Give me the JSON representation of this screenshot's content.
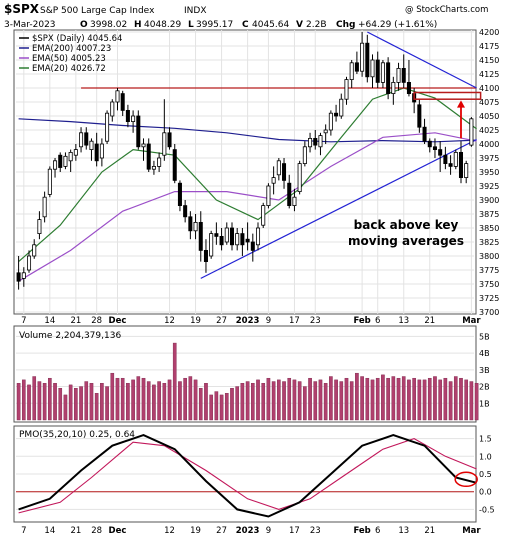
{
  "header": {
    "symbol": "$SPX",
    "name": "S&P 500 Large Cap Index",
    "exchange": "INDX",
    "watermark": "@ StockCharts.com",
    "date": "3-Mar-2023",
    "open_label": "O",
    "open": "3998.02",
    "high_label": "H",
    "high": "4048.29",
    "low_label": "L",
    "low": "3995.17",
    "close_label": "C",
    "close": "4045.64",
    "volume_label": "V",
    "volume": "2.2B",
    "change_label": "Chg",
    "change": "+64.29 (+1.61%)"
  },
  "colors": {
    "up": "#000000",
    "down": "#000000",
    "ema200": "#1f1f8f",
    "ema50": "#9b4fc8",
    "ema20": "#2e7d32",
    "resistance": "#b71c1c",
    "trendline": "#2323d4",
    "annotation": "#e00000",
    "volume_bar": "#b0406e",
    "pmo": "#000000",
    "pmo_signal": "#c2185b",
    "grid": "#e3e3e3"
  },
  "chart_data": [
    {
      "type": "candlestick",
      "title": "$SPX (Daily) 4045.64",
      "legend": [
        {
          "name": "$SPX (Daily) 4045.64",
          "color": "#000000"
        },
        {
          "name": "EMA(200) 4007.23",
          "color": "#1f1f8f"
        },
        {
          "name": "EMA(50) 4005.23",
          "color": "#9b4fc8"
        },
        {
          "name": "EMA(20) 4026.72",
          "color": "#2e7d32"
        }
      ],
      "ylim": [
        3700,
        4200
      ],
      "y_ticks": [
        3700,
        3725,
        3750,
        3775,
        3800,
        3825,
        3850,
        3875,
        3900,
        3925,
        3950,
        3975,
        4000,
        4025,
        4050,
        4075,
        4100,
        4125,
        4150,
        4175,
        4200
      ],
      "x_ticks": [
        {
          "label": "7",
          "i": 1
        },
        {
          "label": "14",
          "i": 6
        },
        {
          "label": "21",
          "i": 11
        },
        {
          "label": "28",
          "i": 15
        },
        {
          "label": "Dec",
          "i": 19,
          "bold": true
        },
        {
          "label": "12",
          "i": 29
        },
        {
          "label": "19",
          "i": 34
        },
        {
          "label": "27",
          "i": 39
        },
        {
          "label": "2023",
          "i": 44,
          "bold": true
        },
        {
          "label": "9",
          "i": 48
        },
        {
          "label": "17",
          "i": 53
        },
        {
          "label": "23",
          "i": 57
        },
        {
          "label": "Feb",
          "i": 66,
          "bold": true
        },
        {
          "label": "6",
          "i": 69
        },
        {
          "label": "13",
          "i": 74
        },
        {
          "label": "21",
          "i": 79
        },
        {
          "label": "Mar",
          "i": 87,
          "bold": true
        }
      ],
      "candles": [
        [
          3770,
          3800,
          3740,
          3755
        ],
        [
          3760,
          3780,
          3745,
          3770
        ],
        [
          3775,
          3810,
          3770,
          3800
        ],
        [
          3800,
          3830,
          3795,
          3820
        ],
        [
          3840,
          3880,
          3830,
          3865
        ],
        [
          3870,
          3915,
          3860,
          3905
        ],
        [
          3910,
          3960,
          3905,
          3955
        ],
        [
          3955,
          3975,
          3940,
          3970
        ],
        [
          3980,
          3985,
          3950,
          3958
        ],
        [
          3960,
          3985,
          3955,
          3978
        ],
        [
          3970,
          3990,
          3950,
          3985
        ],
        [
          3980,
          4000,
          3970,
          3990
        ],
        [
          3995,
          4030,
          3985,
          4020
        ],
        [
          4020,
          4030,
          3990,
          3998
        ],
        [
          3990,
          4010,
          3970,
          4005
        ],
        [
          4000,
          4020,
          3960,
          3970
        ],
        [
          3975,
          4010,
          3960,
          4000
        ],
        [
          4005,
          4060,
          4000,
          4055
        ],
        [
          4050,
          4080,
          4040,
          4075
        ],
        [
          4075,
          4100,
          4060,
          4095
        ],
        [
          4090,
          4095,
          4050,
          4060
        ],
        [
          4060,
          4070,
          4030,
          4040
        ],
        [
          4040,
          4060,
          4020,
          4050
        ],
        [
          4050,
          4060,
          3990,
          3995
        ],
        [
          3995,
          4010,
          3970,
          4000
        ],
        [
          4000,
          4010,
          3950,
          3955
        ],
        [
          3955,
          3970,
          3945,
          3960
        ],
        [
          3960,
          3985,
          3950,
          3975
        ],
        [
          3980,
          4080,
          3970,
          4020
        ],
        [
          4020,
          4030,
          3990,
          3995
        ],
        [
          3990,
          4000,
          3930,
          3935
        ],
        [
          3930,
          3935,
          3880,
          3890
        ],
        [
          3890,
          3900,
          3860,
          3870
        ],
        [
          3870,
          3880,
          3830,
          3845
        ],
        [
          3845,
          3875,
          3830,
          3860
        ],
        [
          3860,
          3880,
          3790,
          3810
        ],
        [
          3810,
          3830,
          3770,
          3790
        ],
        [
          3800,
          3845,
          3795,
          3840
        ],
        [
          3840,
          3860,
          3820,
          3835
        ],
        [
          3835,
          3850,
          3810,
          3820
        ],
        [
          3825,
          3860,
          3820,
          3850
        ],
        [
          3850,
          3860,
          3810,
          3820
        ],
        [
          3820,
          3850,
          3810,
          3840
        ],
        [
          3840,
          3850,
          3800,
          3820
        ],
        [
          3830,
          3860,
          3810,
          3825
        ],
        [
          3825,
          3840,
          3790,
          3810
        ],
        [
          3820,
          3860,
          3810,
          3850
        ],
        [
          3855,
          3895,
          3850,
          3890
        ],
        [
          3890,
          3930,
          3885,
          3925
        ],
        [
          3930,
          3960,
          3910,
          3940
        ],
        [
          3945,
          3975,
          3935,
          3970
        ],
        [
          3965,
          3975,
          3920,
          3935
        ],
        [
          3930,
          3945,
          3885,
          3890
        ],
        [
          3890,
          3920,
          3880,
          3905
        ],
        [
          3915,
          3970,
          3910,
          3965
        ],
        [
          3965,
          4005,
          3960,
          3995
        ],
        [
          3995,
          4020,
          3985,
          4010
        ],
        [
          4010,
          4025,
          3990,
          3998
        ],
        [
          3995,
          4020,
          3980,
          4015
        ],
        [
          4020,
          4035,
          4000,
          4025
        ],
        [
          4025,
          4060,
          4015,
          4055
        ],
        [
          4055,
          4070,
          4040,
          4050
        ],
        [
          4050,
          4090,
          4045,
          4080
        ],
        [
          4080,
          4120,
          4070,
          4115
        ],
        [
          4115,
          4150,
          4100,
          4145
        ],
        [
          4145,
          4165,
          4125,
          4130
        ],
        [
          4130,
          4200,
          4120,
          4180
        ],
        [
          4180,
          4195,
          4110,
          4120
        ],
        [
          4120,
          4160,
          4100,
          4150
        ],
        [
          4150,
          4165,
          4100,
          4110
        ],
        [
          4110,
          4150,
          4100,
          4145
        ],
        [
          4145,
          4155,
          4080,
          4090
        ],
        [
          4090,
          4120,
          4070,
          4110
        ],
        [
          4110,
          4145,
          4095,
          4135
        ],
        [
          4135,
          4160,
          4100,
          4110
        ],
        [
          4110,
          4150,
          4085,
          4090
        ],
        [
          4090,
          4100,
          4055,
          4075
        ],
        [
          4070,
          4080,
          4020,
          4030
        ],
        [
          4030,
          4045,
          4000,
          4005
        ],
        [
          4005,
          4010,
          3985,
          3995
        ],
        [
          3995,
          4010,
          3975,
          3990
        ],
        [
          3990,
          4005,
          3950,
          3980
        ],
        [
          3980,
          3995,
          3955,
          3965
        ],
        [
          3965,
          3980,
          3945,
          3960
        ],
        [
          3960,
          3990,
          3955,
          3985
        ],
        [
          3985,
          4005,
          3930,
          3940
        ],
        [
          3940,
          3970,
          3930,
          3965
        ],
        [
          3998,
          4048,
          3995,
          4045
        ]
      ],
      "ema200": [
        [
          0,
          4045
        ],
        [
          10,
          4040
        ],
        [
          20,
          4033
        ],
        [
          30,
          4028
        ],
        [
          40,
          4020
        ],
        [
          50,
          4008
        ],
        [
          60,
          4004
        ],
        [
          70,
          4006
        ],
        [
          80,
          4004
        ],
        [
          88,
          4007
        ]
      ],
      "ema50": [
        [
          0,
          3755
        ],
        [
          10,
          3810
        ],
        [
          20,
          3880
        ],
        [
          30,
          3915
        ],
        [
          40,
          3915
        ],
        [
          50,
          3900
        ],
        [
          60,
          3960
        ],
        [
          70,
          4012
        ],
        [
          80,
          4020
        ],
        [
          88,
          4005
        ]
      ],
      "ema20": [
        [
          0,
          3790
        ],
        [
          8,
          3855
        ],
        [
          16,
          3950
        ],
        [
          22,
          3990
        ],
        [
          30,
          3980
        ],
        [
          38,
          3900
        ],
        [
          46,
          3865
        ],
        [
          54,
          3920
        ],
        [
          62,
          4012
        ],
        [
          68,
          4080
        ],
        [
          74,
          4100
        ],
        [
          80,
          4082
        ],
        [
          88,
          4027
        ]
      ],
      "resistance": [
        {
          "from": 12,
          "to": 88,
          "y": 4100
        }
      ],
      "trendlines": [
        {
          "x1": 35,
          "y1": 3760,
          "x2": 88,
          "y2": 4008
        },
        {
          "x1": 67,
          "y1": 4200,
          "x2": 88,
          "y2": 4100
        }
      ],
      "annotation": {
        "text_line1": "back above key",
        "text_line2": "moving averages"
      }
    },
    {
      "type": "bar",
      "title": "Volume 2,204,379,136",
      "y_ticks": [
        "1B",
        "2B",
        "3B",
        "4B",
        "5B"
      ],
      "ylim": [
        0,
        5.5
      ],
      "values": [
        2.2,
        2.4,
        2.1,
        2.6,
        2.3,
        2.2,
        2.5,
        2.2,
        1.9,
        1.5,
        2.1,
        1.9,
        2.0,
        2.3,
        2.2,
        1.6,
        2.2,
        2.0,
        2.8,
        2.5,
        2.5,
        2.2,
        2.4,
        2.6,
        2.5,
        2.3,
        2.1,
        2.3,
        2.2,
        2.4,
        4.6,
        2.3,
        2.5,
        2.6,
        2.4,
        1.9,
        2.2,
        1.5,
        1.7,
        1.5,
        1.6,
        1.9,
        2.0,
        2.2,
        2.3,
        2.2,
        2.4,
        2.2,
        2.5,
        2.3,
        2.4,
        2.3,
        2.5,
        2.4,
        2.3,
        2.0,
        2.5,
        2.3,
        2.4,
        2.2,
        2.6,
        2.4,
        2.3,
        2.5,
        2.3,
        2.8,
        2.6,
        2.5,
        2.4,
        2.5,
        2.7,
        2.5,
        2.6,
        2.5,
        2.6,
        2.4,
        2.5,
        2.4,
        2.4,
        2.5,
        2.6,
        2.4,
        2.5,
        2.3,
        2.6,
        2.5,
        2.4,
        2.3,
        2.2
      ]
    },
    {
      "type": "line",
      "title": "PMO(35,20,10) 0.25, 0.64",
      "ylim": [
        -0.8,
        1.8
      ],
      "y_ticks": [
        -0.5,
        0.0,
        0.5,
        1.0,
        1.5
      ],
      "series": [
        {
          "name": "PMO",
          "points": [
            [
              0,
              -0.5
            ],
            [
              6,
              -0.2
            ],
            [
              12,
              0.6
            ],
            [
              18,
              1.3
            ],
            [
              24,
              1.6
            ],
            [
              30,
              1.2
            ],
            [
              36,
              0.3
            ],
            [
              42,
              -0.5
            ],
            [
              48,
              -0.7
            ],
            [
              54,
              -0.3
            ],
            [
              60,
              0.5
            ],
            [
              66,
              1.3
            ],
            [
              72,
              1.6
            ],
            [
              78,
              1.3
            ],
            [
              84,
              0.4
            ],
            [
              88,
              0.25
            ]
          ]
        },
        {
          "name": "Signal",
          "points": [
            [
              0,
              -0.6
            ],
            [
              8,
              -0.3
            ],
            [
              14,
              0.4
            ],
            [
              22,
              1.4
            ],
            [
              28,
              1.3
            ],
            [
              36,
              0.6
            ],
            [
              44,
              -0.2
            ],
            [
              50,
              -0.5
            ],
            [
              56,
              -0.2
            ],
            [
              62,
              0.4
            ],
            [
              70,
              1.2
            ],
            [
              76,
              1.5
            ],
            [
              82,
              1.0
            ],
            [
              88,
              0.64
            ]
          ]
        }
      ],
      "zero_line": 0
    }
  ]
}
